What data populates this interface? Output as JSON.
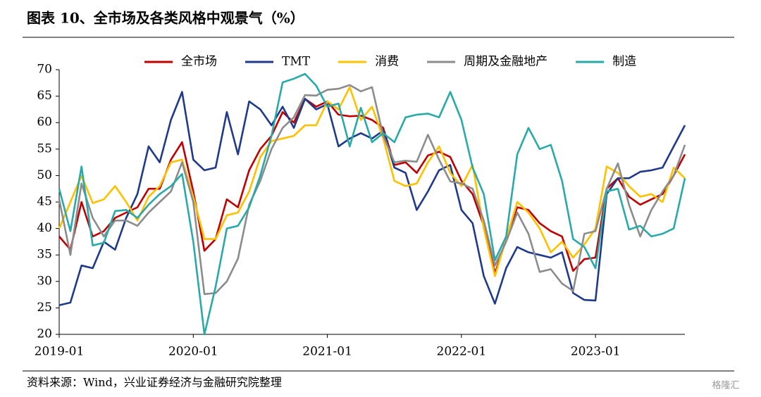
{
  "chart_data": {
    "type": "line",
    "title": "图表 10、全市场及各类风格中观景气（%）",
    "source": "资料来源：Wind，兴业证券经济与金融研究院整理",
    "watermark": "格隆汇",
    "categories": [
      "2019-01",
      null,
      null,
      null,
      null,
      null,
      null,
      null,
      null,
      null,
      null,
      null,
      "2020-01",
      null,
      null,
      null,
      null,
      null,
      null,
      null,
      null,
      null,
      null,
      null,
      "2021-01",
      null,
      null,
      null,
      null,
      null,
      null,
      null,
      null,
      null,
      null,
      null,
      "2022-01",
      null,
      null,
      null,
      null,
      null,
      null,
      null,
      null,
      null,
      null,
      null,
      "2023-01",
      null,
      null,
      null,
      null,
      null,
      null,
      null,
      null
    ],
    "ylim": [
      20,
      70
    ],
    "yticks": [
      20,
      25,
      30,
      35,
      40,
      45,
      50,
      55,
      60,
      65,
      70
    ],
    "grid": false,
    "legend": "top",
    "series": [
      {
        "name": "全市场",
        "color": "#c00000",
        "values": [
          38.5,
          36,
          45,
          38.5,
          39.5,
          42,
          43,
          44,
          47.5,
          47.5,
          53,
          56.3,
          47,
          35.8,
          38,
          45.5,
          44,
          51,
          55,
          57.5,
          62,
          60,
          64.5,
          63,
          64,
          61.5,
          61.2,
          61.3,
          60.5,
          59,
          52,
          52.5,
          50.5,
          53.8,
          54.5,
          53.5,
          49,
          46.5,
          40.5,
          31.5,
          38,
          44,
          43.5,
          41,
          39.5,
          38.5,
          32,
          34.2,
          34.5,
          47.5,
          49.5,
          46,
          44.5,
          45.5,
          46.5,
          50,
          54
        ]
      },
      {
        "name": "TMT",
        "color": "#1f3a8a",
        "values": [
          25.5,
          26,
          33,
          32.5,
          37.5,
          36,
          42,
          46.5,
          55.5,
          52.5,
          60.5,
          65.8,
          53,
          51,
          51.5,
          62,
          54,
          64,
          62.5,
          59.5,
          63,
          59,
          64.5,
          62.5,
          63.5,
          55.5,
          57,
          58,
          57,
          58.5,
          51.5,
          50.5,
          43.5,
          47,
          51,
          52,
          43.5,
          41,
          31,
          25.8,
          32.5,
          36.5,
          35.5,
          35,
          34.5,
          35.5,
          27.8,
          26.5,
          26.4,
          46.5,
          49.5,
          49.5,
          50.7,
          51,
          51.5,
          55.5,
          59.5
        ]
      },
      {
        "name": "消费",
        "color": "#ffc000",
        "values": [
          40,
          45,
          50,
          44.8,
          45.5,
          48,
          45,
          41.5,
          46,
          48,
          52.5,
          53,
          46,
          38,
          38,
          42.5,
          43,
          47,
          53.5,
          56.5,
          57,
          57.5,
          59.5,
          59.5,
          64,
          62.5,
          66.7,
          60.5,
          63,
          57,
          49,
          48,
          48.5,
          52.5,
          55.5,
          50.5,
          48,
          52,
          40,
          31,
          38,
          45,
          43,
          40,
          35.5,
          37.5,
          34.5,
          37,
          40,
          51.7,
          50.5,
          48,
          46,
          46.5,
          45,
          51.5,
          49.5
        ]
      },
      {
        "name": "周期及金融地产",
        "color": "#8c8c8c",
        "values": [
          45.5,
          35,
          48.5,
          42,
          38.5,
          41.5,
          41.5,
          40.5,
          43,
          45,
          47,
          52.5,
          45,
          27.6,
          27.8,
          30,
          34.3,
          44.5,
          49,
          55,
          59,
          61,
          65.2,
          65.1,
          66.2,
          66.4,
          67.1,
          65.9,
          66.7,
          57.5,
          52.5,
          52.8,
          52.6,
          57.7,
          53,
          48.9,
          48.5,
          47.5,
          41.5,
          33,
          37.5,
          43,
          39,
          31.8,
          32.3,
          29.6,
          28.2,
          39,
          39.5,
          47.5,
          52.3,
          44.5,
          38.5,
          43.5,
          47,
          50,
          55.8
        ]
      },
      {
        "name": "制造",
        "color": "#2aa9a9",
        "values": [
          47.5,
          39.5,
          51.7,
          36.8,
          37.3,
          43.3,
          43.5,
          42,
          44.5,
          46.5,
          48,
          50.3,
          37.5,
          20,
          29,
          40,
          40.5,
          44,
          50,
          57.5,
          67.6,
          68.3,
          69.2,
          67,
          63,
          63.6,
          55.5,
          62.8,
          56.3,
          58,
          56.3,
          61,
          61.5,
          61.7,
          61,
          65.8,
          60.5,
          51.5,
          46.5,
          34,
          38.5,
          54,
          59,
          55,
          55.8,
          49,
          38,
          36.5,
          32.5,
          47,
          47.5,
          39.8,
          40.5,
          38.5,
          39,
          40,
          49.5
        ]
      }
    ]
  }
}
